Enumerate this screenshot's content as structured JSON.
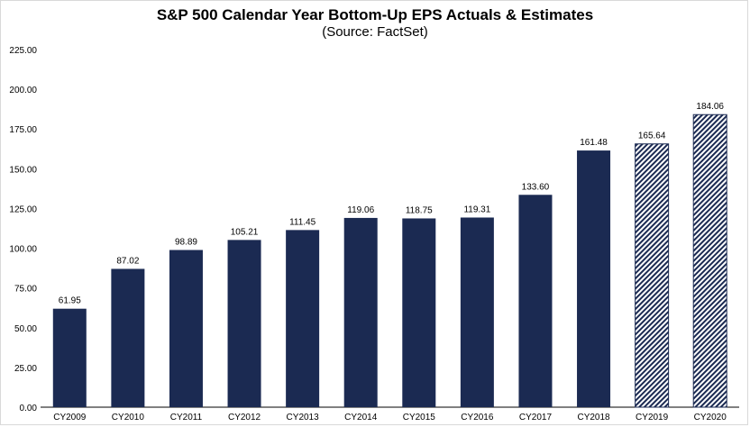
{
  "chart_data": {
    "type": "bar",
    "title": "S&P 500 Calendar Year Bottom-Up EPS Actuals & Estimates",
    "subtitle": "(Source: FactSet)",
    "xlabel": "",
    "ylabel": "",
    "ylim": [
      0,
      225
    ],
    "yticks": [
      "0.00",
      "25.00",
      "50.00",
      "75.00",
      "100.00",
      "125.00",
      "150.00",
      "175.00",
      "200.00",
      "225.00"
    ],
    "categories": [
      "CY2009",
      "CY2010",
      "CY2011",
      "CY2012",
      "CY2013",
      "CY2014",
      "CY2015",
      "CY2016",
      "CY2017",
      "CY2018",
      "CY2019",
      "CY2020"
    ],
    "values": [
      61.95,
      87.02,
      98.89,
      105.21,
      111.45,
      119.06,
      118.75,
      119.31,
      133.6,
      161.48,
      165.64,
      184.06
    ],
    "value_labels": [
      "61.95",
      "87.02",
      "98.89",
      "105.21",
      "111.45",
      "119.06",
      "118.75",
      "119.31",
      "133.60",
      "161.48",
      "165.64",
      "184.06"
    ],
    "estimate": [
      false,
      false,
      false,
      false,
      false,
      false,
      false,
      false,
      false,
      false,
      true,
      true
    ],
    "grid": false,
    "legend": "none",
    "colors": {
      "actual": "#1b2a52",
      "estimate_stripe": "#1b2a52",
      "estimate_bg": "#ffffff",
      "axis": "#000000"
    }
  }
}
